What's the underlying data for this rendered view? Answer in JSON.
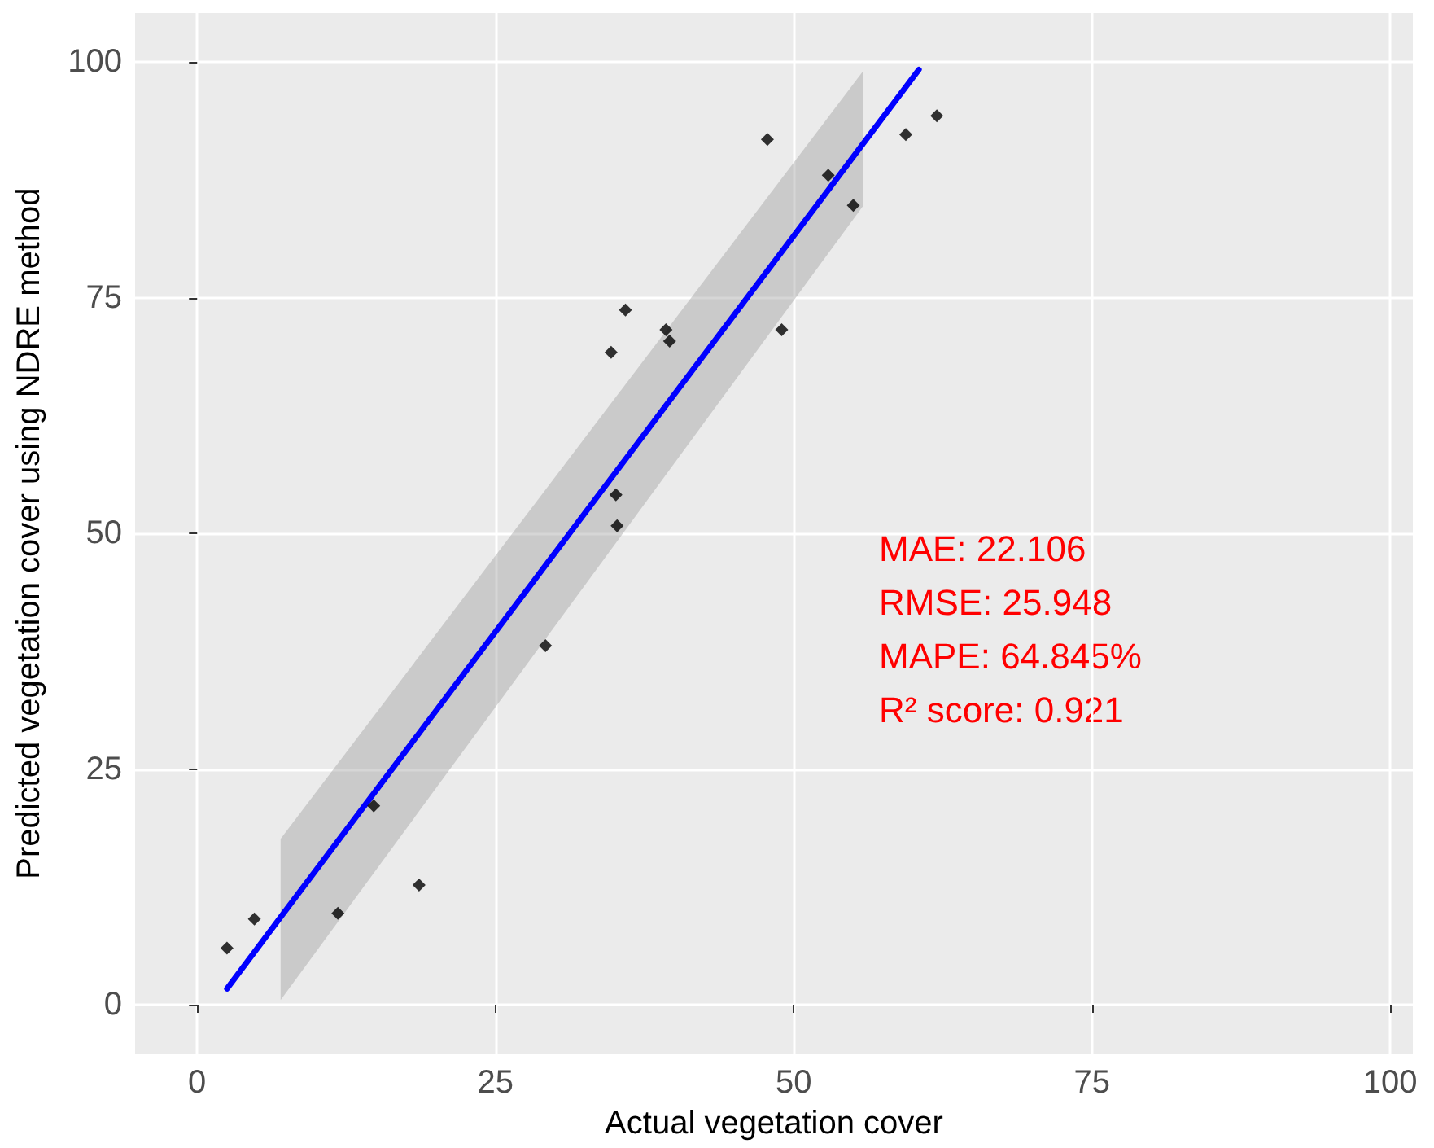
{
  "chart_data": {
    "type": "scatter",
    "xlabel": "Actual vegetation cover",
    "ylabel": "Predicted vegetation cover using NDRE method",
    "xlim": [
      -5.2,
      101.9
    ],
    "xticks": [
      0,
      25,
      50,
      75,
      100
    ],
    "ylim": [
      -5.2,
      105.2
    ],
    "yticks": [
      0,
      25,
      50,
      75,
      100
    ],
    "grid": true,
    "annotations": [
      "MAE: 22.106",
      "RMSE: 25.948",
      "MAPE: 64.845%",
      "R² score: 0.921"
    ],
    "series": [
      {
        "color": "#000000",
        "marker": "diamond",
        "x": [
          2.5,
          4.8,
          11.8,
          14.8,
          18.6,
          29.2,
          35.1,
          35.2,
          34.7,
          35.9,
          39.3,
          39.6,
          49.0,
          47.8,
          52.9,
          55.0,
          59.4,
          62.0
        ],
        "values": [
          6.0,
          9.1,
          9.7,
          21.1,
          12.7,
          38.1,
          54.1,
          50.8,
          69.2,
          73.7,
          71.6,
          70.4,
          71.6,
          91.8,
          88.0,
          84.8,
          92.3,
          94.3
        ]
      },
      {
        "type": "line",
        "color": "#0000ff",
        "marker": "none",
        "x": [
          2.5,
          7,
          55.8,
          60.5
        ],
        "values": [
          1.7,
          9.3,
          91.3,
          99.2
        ],
        "lower": [
          null,
          0.5,
          84.7,
          null
        ],
        "upper": [
          null,
          17.6,
          99.0,
          null
        ]
      }
    ]
  }
}
